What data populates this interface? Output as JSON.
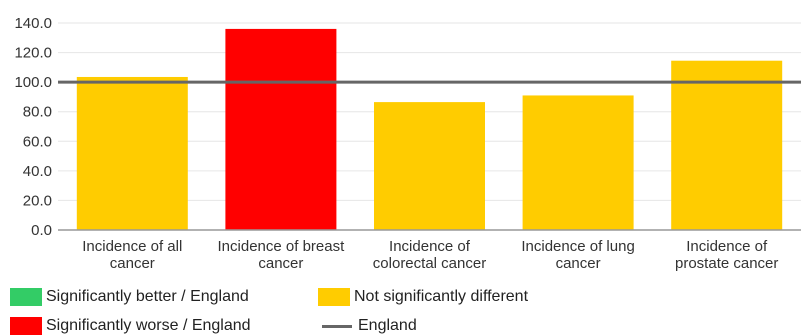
{
  "chart_data": {
    "type": "bar",
    "categories": [
      [
        "Incidence of all",
        "cancer"
      ],
      [
        "Incidence of breast",
        "cancer"
      ],
      [
        "Incidence of",
        "colorectal cancer"
      ],
      [
        "Incidence of lung",
        "cancer"
      ],
      [
        "Incidence of",
        "prostate cancer"
      ]
    ],
    "values": [
      103.5,
      136,
      86.5,
      91,
      114.5
    ],
    "bar_colors": [
      "#ffcc00",
      "#ff0000",
      "#ffcc00",
      "#ffcc00",
      "#ffcc00"
    ],
    "ylim": [
      0,
      140
    ],
    "yticks": [
      "0.0",
      "20.0",
      "40.0",
      "60.0",
      "80.0",
      "100.0",
      "120.0",
      "140.0"
    ],
    "reference_line": {
      "name": "England",
      "value": 100,
      "color": "#666666"
    },
    "grid": true,
    "legend_position": "bottom"
  },
  "legend": {
    "items": [
      {
        "label": "Significantly better / England",
        "color": "#33cc66"
      },
      {
        "label": "Not significantly different",
        "color": "#ffcc00"
      },
      {
        "label": "Significantly worse / England",
        "color": "#ff0000"
      },
      {
        "label": "England",
        "color": "#666666"
      }
    ]
  }
}
